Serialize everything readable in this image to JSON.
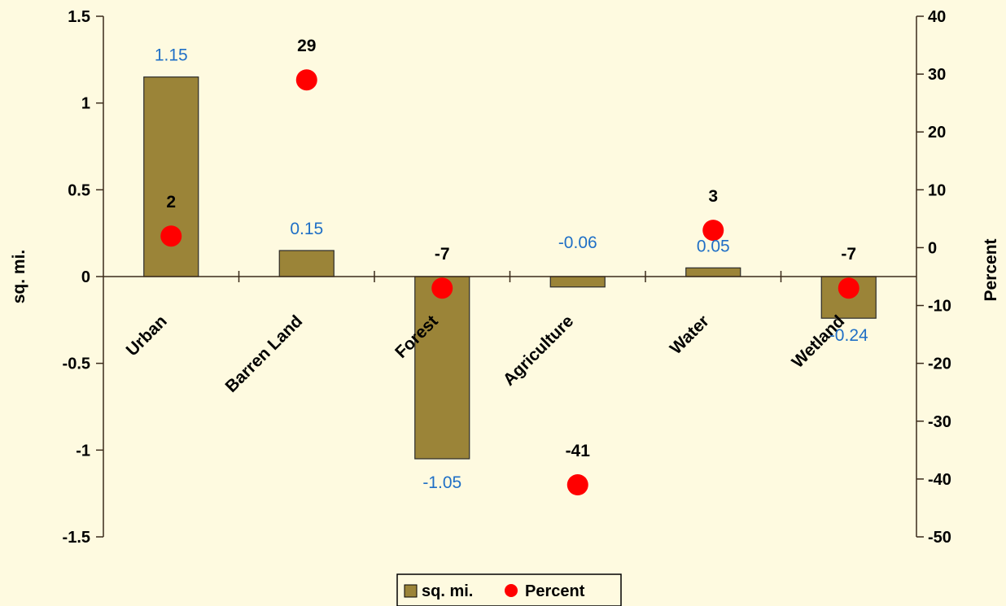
{
  "chart_data": {
    "type": "bar",
    "categories": [
      "Urban",
      "Barren Land",
      "Forest",
      "Agriculture",
      "Water",
      "Wetland"
    ],
    "series": [
      {
        "name": "sq. mi.",
        "type": "bar",
        "axis": "left",
        "values": [
          1.15,
          0.15,
          -1.05,
          -0.06,
          0.05,
          -0.24
        ],
        "labels": [
          "1.15",
          "0.15",
          "-1.05",
          "-0.06",
          "0.05",
          "-0.24"
        ]
      },
      {
        "name": "Percent",
        "type": "scatter",
        "axis": "right",
        "values": [
          2,
          29,
          -7,
          -41,
          3,
          -7
        ],
        "labels": [
          "2",
          "29",
          "-7",
          "-41",
          "3",
          "-7"
        ]
      }
    ],
    "ylabel": "sq. mi.",
    "y2label": "Percent",
    "ylim": [
      -1.5,
      1.5
    ],
    "y2lim": [
      -50,
      40
    ],
    "yticks": [
      "-1.5",
      "-1",
      "-0.5",
      "0",
      "0.5",
      "1",
      "1.5"
    ],
    "y2ticks": [
      "-50",
      "-40",
      "-30",
      "-20",
      "-10",
      "0",
      "10",
      "20",
      "30",
      "40"
    ],
    "legend_position": "bottom",
    "grid": false,
    "colors": {
      "background": "#FEFAE0",
      "bar": "#9B8438",
      "point": "#FF0000",
      "bar_label": "#1F6FC6",
      "axis": "#3A2A1A"
    }
  }
}
